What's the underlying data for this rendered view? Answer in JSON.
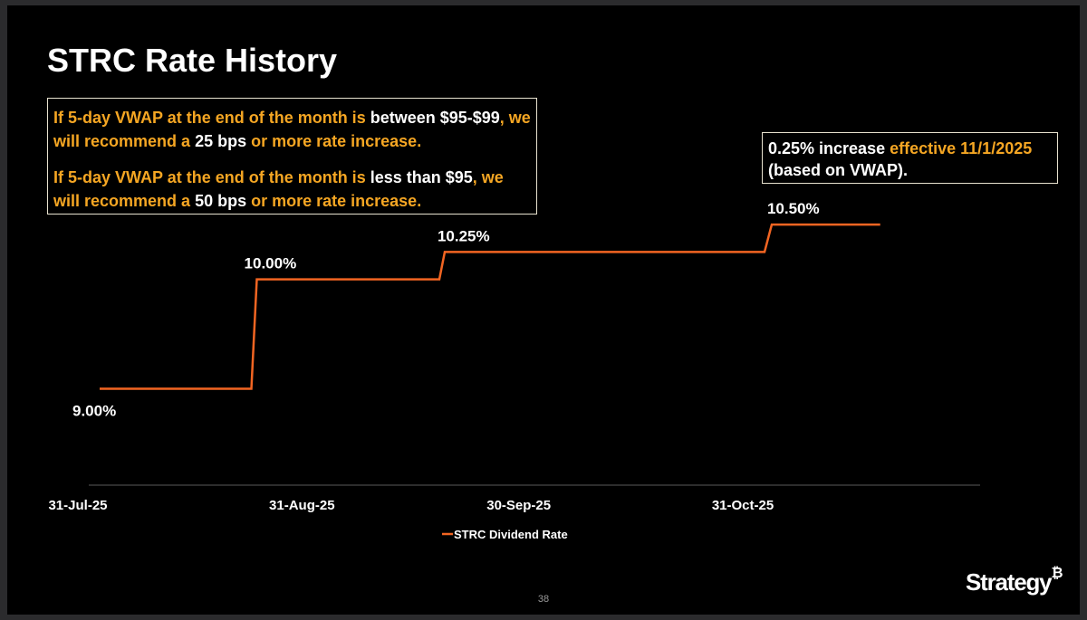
{
  "title": "STRC Rate History",
  "note_left": {
    "p1": [
      {
        "text": "If 5-day VWAP at the end of the month is ",
        "color": "orange"
      },
      {
        "text": "between $95-$99",
        "color": "white"
      },
      {
        "text": ", we will recommend a ",
        "color": "orange"
      },
      {
        "text": "25 bps",
        "color": "white"
      },
      {
        "text": " or more rate increase.",
        "color": "orange"
      }
    ],
    "p2": [
      {
        "text": "If 5-day VWAP at the end of the month is ",
        "color": "orange"
      },
      {
        "text": "less than $95",
        "color": "white"
      },
      {
        "text": ", we will recommend a ",
        "color": "orange"
      },
      {
        "text": "50 bps",
        "color": "white"
      },
      {
        "text": " or more rate increase.",
        "color": "orange"
      }
    ]
  },
  "note_right": [
    {
      "text": "0.25% increase ",
      "color": "white"
    },
    {
      "text": "effective 11/1/2025",
      "color": "orange"
    },
    {
      "text": " (based on VWAP).",
      "color": "white"
    }
  ],
  "chart_data": {
    "type": "line",
    "step": true,
    "categories": [
      "31-Jul-25",
      "31-Aug-25",
      "30-Sep-25",
      "31-Oct-25"
    ],
    "series": [
      {
        "name": "STRC Dividend Rate",
        "color": "#f26522",
        "points": [
          {
            "x": "31-Jul-25",
            "y": 9.0
          },
          {
            "x": "21-Aug-25",
            "y": 9.0
          },
          {
            "x": "21-Aug-25",
            "y": 10.0
          },
          {
            "x": "16-Sep-25",
            "y": 10.0
          },
          {
            "x": "16-Sep-25",
            "y": 10.25
          },
          {
            "x": "31-Oct-25",
            "y": 10.25
          },
          {
            "x": "1-Nov-25",
            "y": 10.5
          },
          {
            "x": "16-Nov-25",
            "y": 10.5
          }
        ]
      }
    ],
    "data_labels": [
      "9.00%",
      "10.00%",
      "10.25%",
      "10.50%"
    ],
    "ylim": [
      8.5,
      10.65
    ],
    "legend": {
      "label": "STRC Dividend Rate",
      "position": "bottom"
    }
  },
  "page_number": "38",
  "brand": {
    "name": "Strategy",
    "mark": "₿"
  }
}
